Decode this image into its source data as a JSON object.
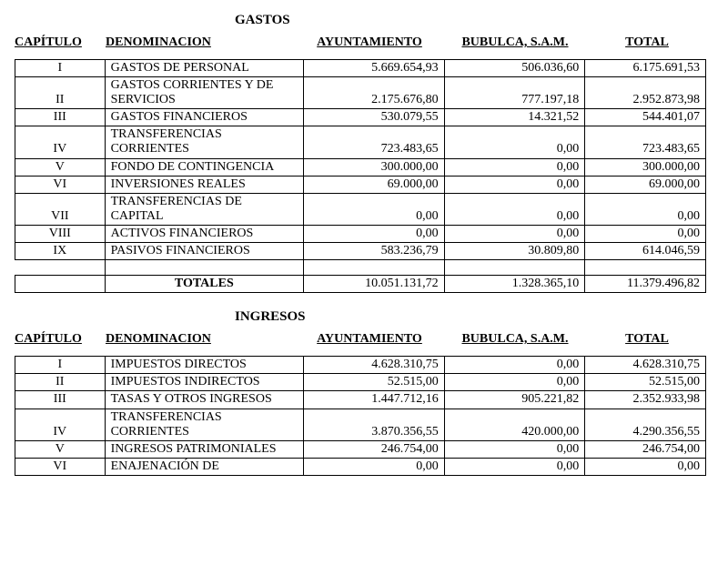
{
  "gastos": {
    "title": "GASTOS",
    "headers": {
      "capitulo": "CAPÍTULO",
      "denominacion": "DENOMINACION",
      "ayuntamiento": "AYUNTAMIENTO",
      "bubulca": "BUBULCA, S.A.M.",
      "total": "TOTAL"
    },
    "rows": [
      {
        "cap": "I",
        "denom": "GASTOS DE PERSONAL",
        "ayto": "5.669.654,93",
        "bub": "506.036,60",
        "tot": "6.175.691,53"
      },
      {
        "cap": "II",
        "denom": "GASTOS CORRIENTES Y DE SERVICIOS",
        "ayto": "2.175.676,80",
        "bub": "777.197,18",
        "tot": "2.952.873,98"
      },
      {
        "cap": "III",
        "denom": "GASTOS FINANCIEROS",
        "ayto": "530.079,55",
        "bub": "14.321,52",
        "tot": "544.401,07"
      },
      {
        "cap": "IV",
        "denom": "TRANSFERENCIAS CORRIENTES",
        "ayto": "723.483,65",
        "bub": "0,00",
        "tot": "723.483,65"
      },
      {
        "cap": "V",
        "denom": "FONDO DE CONTINGENCIA",
        "ayto": "300.000,00",
        "bub": "0,00",
        "tot": "300.000,00"
      },
      {
        "cap": "VI",
        "denom": "INVERSIONES REALES",
        "ayto": "69.000,00",
        "bub": "0,00",
        "tot": "69.000,00"
      },
      {
        "cap": "VII",
        "denom": "TRANSFERENCIAS DE CAPITAL",
        "ayto": "0,00",
        "bub": "0,00",
        "tot": "0,00"
      },
      {
        "cap": "VIII",
        "denom": "ACTIVOS FINANCIEROS",
        "ayto": "0,00",
        "bub": "0,00",
        "tot": "0,00"
      },
      {
        "cap": "IX",
        "denom": "PASIVOS FINANCIEROS",
        "ayto": "583.236,79",
        "bub": "30.809,80",
        "tot": "614.046,59"
      }
    ],
    "totals": {
      "label": "TOTALES",
      "ayto": "10.051.131,72",
      "bub": "1.328.365,10",
      "tot": "11.379.496,82"
    }
  },
  "ingresos": {
    "title": "INGRESOS",
    "headers": {
      "capitulo": "CAPÍTULO",
      "denominacion": "DENOMINACION",
      "ayuntamiento": "AYUNTAMIENTO",
      "bubulca": "BUBULCA, S.A.M.",
      "total": "TOTAL"
    },
    "rows": [
      {
        "cap": "I",
        "denom": "IMPUESTOS DIRECTOS",
        "ayto": "4.628.310,75",
        "bub": "0,00",
        "tot": "4.628.310,75"
      },
      {
        "cap": "II",
        "denom": "IMPUESTOS INDIRECTOS",
        "ayto": "52.515,00",
        "bub": "0,00",
        "tot": "52.515,00"
      },
      {
        "cap": "III",
        "denom": "TASAS Y OTROS INGRESOS",
        "ayto": "1.447.712,16",
        "bub": "905.221,82",
        "tot": "2.352.933,98"
      },
      {
        "cap": "IV",
        "denom": "TRANSFERENCIAS CORRIENTES",
        "ayto": "3.870.356,55",
        "bub": "420.000,00",
        "tot": "4.290.356,55"
      },
      {
        "cap": "V",
        "denom": "INGRESOS PATRIMONIALES",
        "ayto": "246.754,00",
        "bub": "0,00",
        "tot": "246.754,00"
      },
      {
        "cap": "VI",
        "denom": "ENAJENACIÓN DE",
        "ayto": "0,00",
        "bub": "0,00",
        "tot": "0,00"
      }
    ]
  }
}
